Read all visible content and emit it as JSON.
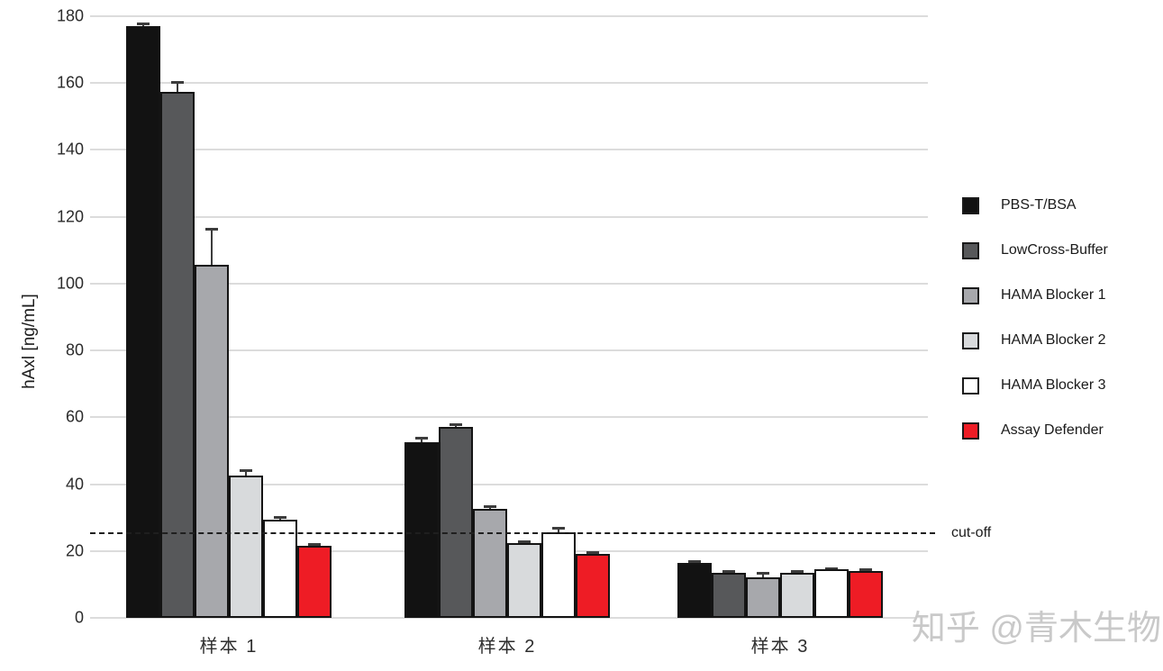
{
  "watermark": "知乎 @青木生物",
  "chart_data": {
    "type": "bar",
    "title": "",
    "xlabel": "",
    "ylabel": "hAxl [ng/mL]",
    "ylim": [
      0,
      180
    ],
    "yticks": [
      0,
      20,
      40,
      60,
      80,
      100,
      120,
      140,
      160,
      180
    ],
    "grid": true,
    "legend_position": "right",
    "categories": [
      "样本 1",
      "样本 2",
      "样本 3"
    ],
    "series": [
      {
        "name": "PBS-T/BSA",
        "color": "#121212",
        "values": [
          177.0,
          52.5,
          16.5
        ],
        "errors": [
          0.8,
          1.5,
          0.6
        ]
      },
      {
        "name": "LowCross-Buffer",
        "color": "#57585a",
        "values": [
          157.5,
          57.0,
          13.5
        ],
        "errors": [
          2.8,
          1.0,
          0.4
        ]
      },
      {
        "name": "HAMA Blocker 1",
        "color": "#a7a8ac",
        "values": [
          105.5,
          32.5,
          12.0
        ],
        "errors": [
          11.0,
          0.8,
          1.4
        ]
      },
      {
        "name": "HAMA Blocker 2",
        "color": "#d8dadc",
        "values": [
          42.5,
          22.5,
          13.5
        ],
        "errors": [
          1.8,
          0.5,
          0.6
        ]
      },
      {
        "name": "HAMA Blocker 3",
        "color": "#ffffff",
        "values": [
          29.5,
          25.5,
          14.5
        ],
        "errors": [
          0.8,
          1.5,
          0.4
        ]
      },
      {
        "name": "Assay Defender",
        "color": "#ee1c25",
        "values": [
          21.5,
          19.0,
          14.0
        ],
        "errors": [
          0.6,
          0.7,
          0.5
        ]
      }
    ],
    "cutoff": {
      "value": 25.3,
      "label": "cut-off"
    }
  }
}
